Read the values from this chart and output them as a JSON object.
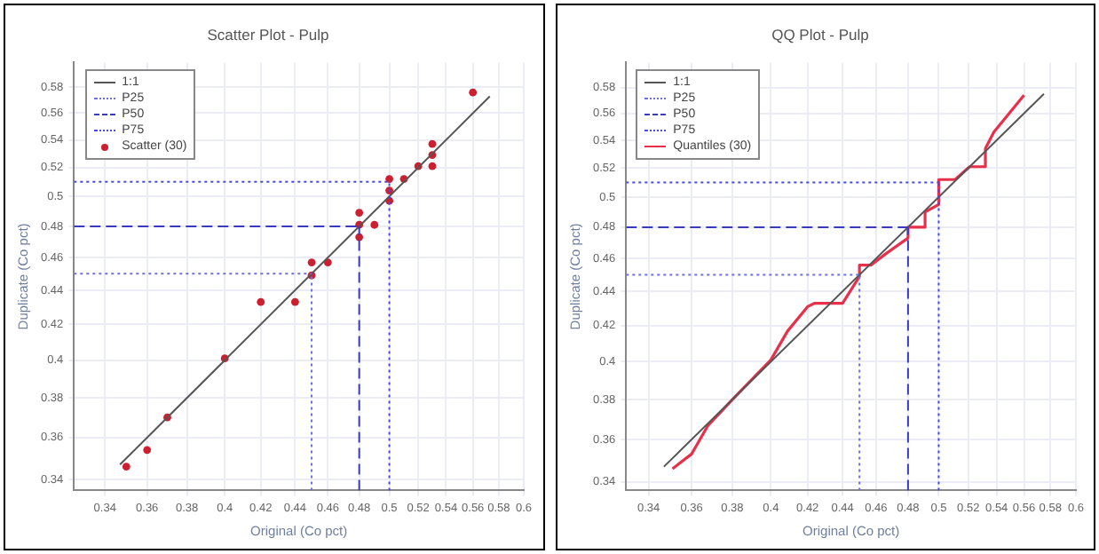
{
  "chart_data": [
    {
      "type": "scatter",
      "title": "Scatter Plot - Pulp",
      "xlabel": "Original (Co pct)",
      "ylabel": "Duplicate (Co pct)",
      "log": "xy",
      "grid": true,
      "legend": "top left",
      "xlim": [
        0.326,
        0.6
      ],
      "ylim": [
        0.335,
        0.6
      ],
      "xticks": [
        0.34,
        0.36,
        0.38,
        0.4,
        0.42,
        0.44,
        0.46,
        0.48,
        0.5,
        0.52,
        0.54,
        0.56,
        0.58,
        0.6
      ],
      "yticks": [
        0.34,
        0.36,
        0.38,
        0.4,
        0.42,
        0.44,
        0.46,
        0.48,
        0.5,
        0.52,
        0.54,
        0.56,
        0.58
      ],
      "series": [
        {
          "name": "1:1",
          "type": "line",
          "color": "#555555",
          "line_style": "solid",
          "marker": "none",
          "x": [
            0.347,
            0.573
          ],
          "values": [
            0.347,
            0.573
          ]
        },
        {
          "name": "Scatter (30)",
          "color": "#cc1f2f",
          "marker": "circle",
          "x": [
            0.35,
            0.36,
            0.37,
            0.4,
            0.42,
            0.44,
            0.45,
            0.45,
            0.46,
            0.48,
            0.48,
            0.48,
            0.49,
            0.5,
            0.5,
            0.5,
            0.51,
            0.52,
            0.53,
            0.53,
            0.53,
            0.56
          ],
          "values": [
            0.346,
            0.354,
            0.37,
            0.401,
            0.433,
            0.433,
            0.449,
            0.457,
            0.457,
            0.481,
            0.489,
            0.473,
            0.481,
            0.512,
            0.504,
            0.497,
            0.512,
            0.521,
            0.537,
            0.529,
            0.521,
            0.576
          ]
        }
      ],
      "ref_lines": [
        {
          "axis": "x",
          "value": 0.45,
          "label": "P25",
          "color": "#6f6fe0",
          "line_style": "dotted"
        },
        {
          "axis": "y",
          "value": 0.45,
          "color": "#6f6fe0",
          "line_style": "dotted"
        },
        {
          "axis": "x",
          "value": 0.48,
          "label": "P50",
          "color": "#3a3ac0",
          "line_style": "dashed"
        },
        {
          "axis": "y",
          "value": 0.48,
          "color": "#3a3ac0",
          "line_style": "dashed"
        },
        {
          "axis": "x",
          "value": 0.5,
          "label": "P75",
          "color": "#4848e8",
          "line_style": "dotted"
        },
        {
          "axis": "y",
          "value": 0.51,
          "color": "#4848e8",
          "line_style": "dotted"
        }
      ]
    },
    {
      "type": "line",
      "title": "QQ Plot - Pulp",
      "xlabel": "Original (Co pct)",
      "ylabel": "Duplicate (Co pct)",
      "log": "xy",
      "grid": true,
      "legend": "top left",
      "xlim": [
        0.33,
        0.6
      ],
      "ylim": [
        0.336,
        0.6
      ],
      "xticks": [
        0.34,
        0.36,
        0.38,
        0.4,
        0.42,
        0.44,
        0.46,
        0.48,
        0.5,
        0.52,
        0.54,
        0.56,
        0.58,
        0.6
      ],
      "yticks": [
        0.34,
        0.36,
        0.38,
        0.4,
        0.42,
        0.44,
        0.46,
        0.48,
        0.5,
        0.52,
        0.54,
        0.56,
        0.58
      ],
      "series": [
        {
          "name": "1:1",
          "color": "#555555",
          "line_style": "solid",
          "marker": "none",
          "x": [
            0.347,
            0.575
          ],
          "values": [
            0.347,
            0.575
          ]
        },
        {
          "name": "Quantiles (30)",
          "color": "#e8304a",
          "line_style": "solid",
          "marker": "none",
          "x": [
            0.351,
            0.36,
            0.368,
            0.381,
            0.4,
            0.409,
            0.42,
            0.424,
            0.44,
            0.45,
            0.45,
            0.457,
            0.466,
            0.48,
            0.48,
            0.491,
            0.491,
            0.5,
            0.5,
            0.511,
            0.521,
            0.532,
            0.532,
            0.538,
            0.56
          ],
          "values": [
            0.346,
            0.353,
            0.367,
            0.381,
            0.401,
            0.417,
            0.431,
            0.433,
            0.433,
            0.449,
            0.456,
            0.456,
            0.463,
            0.473,
            0.48,
            0.48,
            0.49,
            0.495,
            0.512,
            0.512,
            0.521,
            0.521,
            0.534,
            0.546,
            0.574
          ]
        }
      ],
      "ref_lines": [
        {
          "axis": "x",
          "value": 0.45,
          "label": "P25",
          "color": "#6f6fe0",
          "line_style": "dotted"
        },
        {
          "axis": "y",
          "value": 0.45,
          "color": "#6f6fe0",
          "line_style": "dotted"
        },
        {
          "axis": "x",
          "value": 0.48,
          "label": "P50",
          "color": "#3a3ac0",
          "line_style": "dashed"
        },
        {
          "axis": "y",
          "value": 0.48,
          "color": "#3a3ac0",
          "line_style": "dashed"
        },
        {
          "axis": "x",
          "value": 0.5,
          "label": "P75",
          "color": "#4848e8",
          "line_style": "dotted"
        },
        {
          "axis": "y",
          "value": 0.51,
          "color": "#4848e8",
          "line_style": "dotted"
        }
      ]
    }
  ]
}
